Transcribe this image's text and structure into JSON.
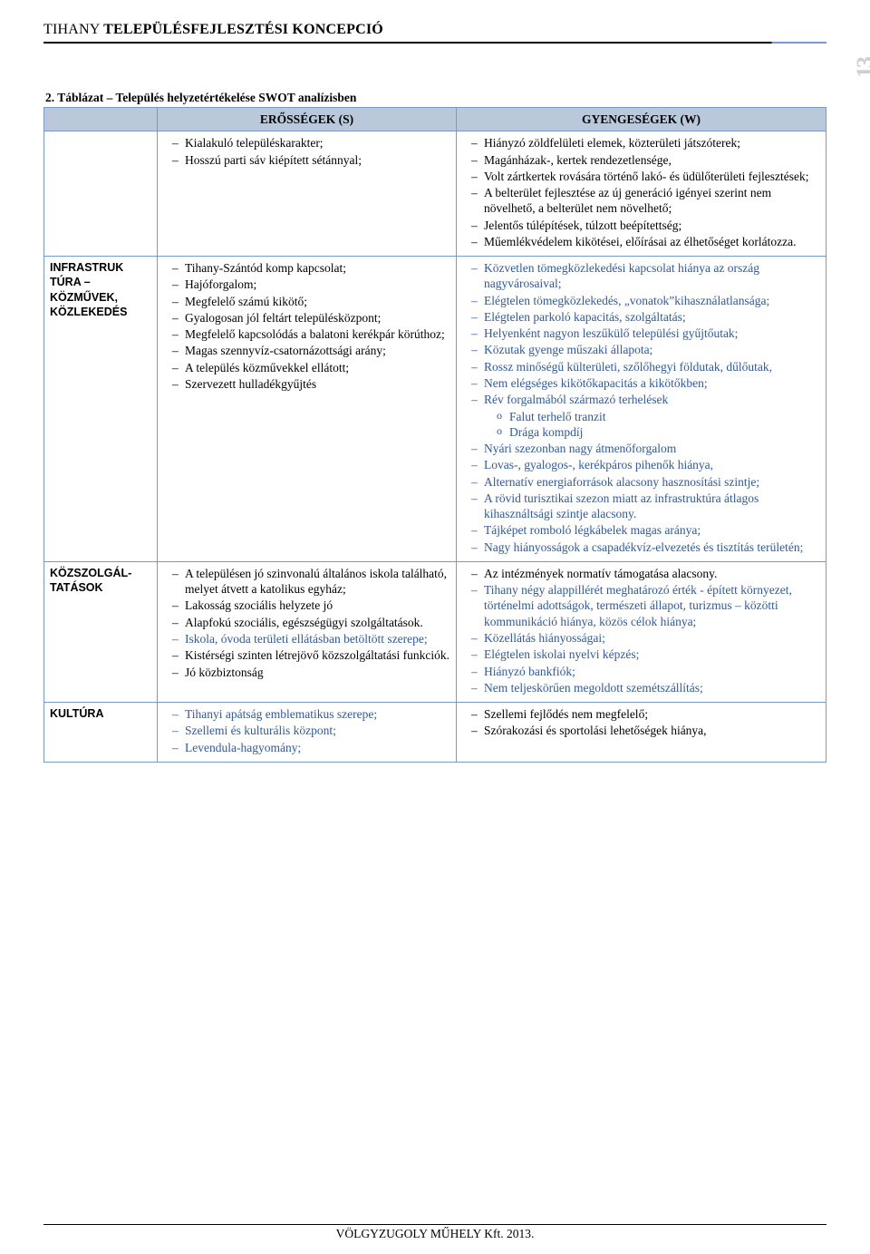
{
  "header": {
    "prefix": "TIHANY",
    "suffix": "TELEPÜLÉSFEJLESZTÉSI KONCEPCIÓ"
  },
  "page_number": "13",
  "table_title": "2. Táblázat – Település helyzetértékelése SWOT analízisben",
  "columns": {
    "s": "ERŐSSÉGEK (S)",
    "w": "GYENGESÉGEK (W)"
  },
  "rows": [
    {
      "label": "",
      "strengths": [
        "Kialakuló településkarakter;",
        "Hosszú parti sáv kiépített sétánnyal;"
      ],
      "weaknesses_blue": false,
      "weaknesses": [
        "Hiányzó zöldfelületi elemek, közterületi játszóterek;",
        "Magánházak-, kertek rendezetlensége,",
        "Volt zártkertek rovására történő lakó- és üdülőterületi fejlesztések;",
        "A belterület fejlesztése az új generáció igényei szerint nem növelhető, a belterület nem növelhető;",
        "Jelentős túlépítések, túlzott beépítettség;",
        "Műemlékvédelem kikötései, előírásai az élhetőséget korlátozza."
      ]
    },
    {
      "label": "INFRASTRUK TÚRA – KÖZMŰVEK, KÖZLEKEDÉS",
      "strengths": [
        "Tihany-Szántód komp kapcsolat;",
        "Hajóforgalom;",
        "Megfelelő számú kikötő;",
        "Gyalogosan jól feltárt településközpont;",
        "Megfelelő kapcsolódás a balatoni kerékpár körúthoz;",
        "Magas szennyvíz-csatornázottsági arány;",
        "A település közművekkel ellátott;",
        "Szervezett hulladékgyűjtés"
      ],
      "weaknesses_blue": true,
      "weaknesses": [
        "Közvetlen tömegközlekedési kapcsolat hiánya az ország nagyvárosaival;",
        "Elégtelen tömegközlekedés, „vonatok”kihasználatlansága;",
        "Elégtelen parkoló kapacitás, szolgáltatás;",
        "Helyenként nagyon leszűkülő települési gyűjtőutak;",
        "Közutak gyenge műszaki állapota;",
        "Rossz minőségű külterületi, szőlőhegyi földutak, dűlőutak,",
        "Nem elégséges kikötőkapacitás a kikötőkben;",
        {
          "text": "Rév forgalmából származó terhelések",
          "sub": [
            "Falut terhelő tranzit",
            "Drága kompdíj"
          ]
        },
        "Nyári szezonban nagy átmenőforgalom",
        "Lovas-, gyalogos-, kerékpáros pihenők hiánya,",
        "Alternatív energiaforrások alacsony hasznosítási szintje;",
        "A rövid turisztikai szezon miatt az infrastruktúra átlagos kihasználtsági szintje alacsony.",
        "Tájképet romboló légkábelek magas aránya;",
        "Nagy hiányosságok a csapadékvíz-elvezetés és tisztítás területén;"
      ]
    },
    {
      "label": "KÖZSZOLGÁL-TATÁSOK",
      "strengths": [
        "A településen jó szinvonalú általános iskola található, melyet átvett a katolikus egyház;",
        "Lakosság szociális helyzete jó",
        "Alapfokú szociális, egészségügyi szolgáltatások.",
        {
          "text": "Iskola, óvoda területi ellátásban betöltött szerepe;",
          "blue": true
        },
        "Kistérségi szinten létrejövő közszolgáltatási funkciók.",
        "Jó közbiztonság"
      ],
      "weaknesses_blue": false,
      "weaknesses": [
        "Az intézmények normatív támogatása alacsony.",
        {
          "text": "Tihany négy alappillérét meghatározó érték - épített környezet, történelmi adottságok, természeti állapot, turizmus – közötti kommunikáció hiánya, közös célok hiánya;",
          "blue": true
        },
        {
          "text": "Közellátás hiányosságai;",
          "blue": true
        },
        {
          "text": "Elégtelen iskolai nyelvi képzés;",
          "blue": true
        },
        {
          "text": "Hiányzó bankfiók;",
          "blue": true
        },
        {
          "text": "Nem teljeskörűen megoldott szemétszállítás;",
          "blue": true
        }
      ]
    },
    {
      "label": "KULTÚRA",
      "strengths": [
        {
          "text": "Tihanyi apátság emblematikus szerepe;",
          "blue": true
        },
        {
          "text": "Szellemi és kulturális központ;",
          "blue": true
        },
        {
          "text": "Levendula-hagyomány;",
          "blue": true
        }
      ],
      "weaknesses_blue": false,
      "weaknesses": [
        "Szellemi fejlődés nem megfelelő;",
        "Szórakozási és sportolási lehetőségek hiánya,"
      ]
    }
  ],
  "footer": "VÖLGYZUGOLY MŰHELY Kft. 2013.",
  "colors": {
    "accent_border": "#7a99c9",
    "header_bg": "#b9c8da",
    "blue_text": "#2f5a9e",
    "pagenum": "#cfcfcf"
  }
}
